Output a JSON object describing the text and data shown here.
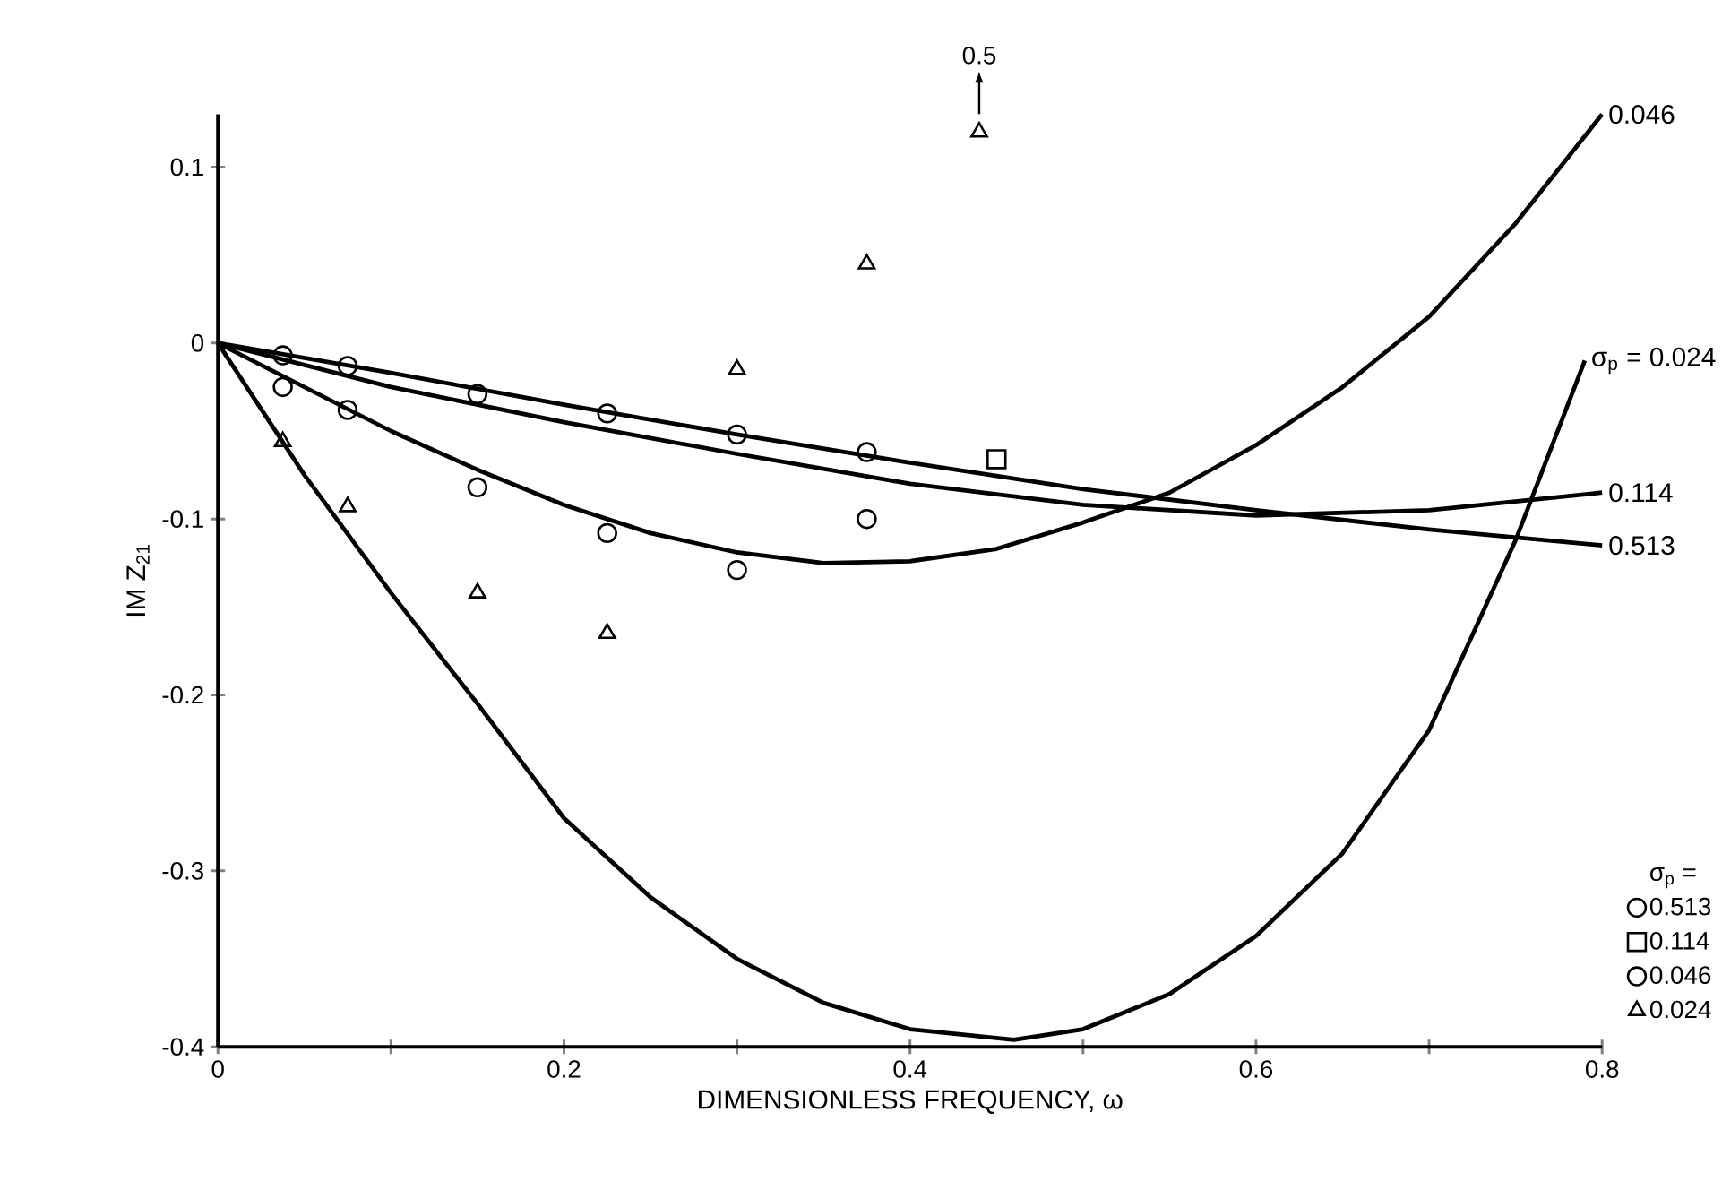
{
  "chart_data": {
    "type": "line",
    "xlabel": "DIMENSIONLESS FREQUENCY, ω",
    "ylabel": "IM Z$_{21}$",
    "legend_title": "σ$_{p}$ =",
    "legend": "right",
    "xlim": [
      0,
      0.8
    ],
    "ylim": [
      -0.4,
      0.13
    ],
    "xticks": [
      {
        "value": 0,
        "label": "0"
      },
      {
        "value": 0.1,
        "label": null
      },
      0.2,
      {
        "value": 0.3,
        "label": null
      },
      0.4,
      {
        "value": 0.5,
        "label": null
      },
      0.6,
      {
        "value": 0.7,
        "label": null
      },
      0.8
    ],
    "yticks": [
      -0.4,
      -0.3,
      -0.2,
      -0.1,
      0,
      0.1
    ],
    "annotations": [
      {
        "text": "0.5",
        "x": 0.44,
        "y": 0.12
      }
    ],
    "series": [
      {
        "name": "0.513",
        "marker": "none",
        "line_style": "solid",
        "color": "#000000",
        "x": [
          0,
          0.1,
          0.2,
          0.3,
          0.4,
          0.5,
          0.6,
          0.7,
          0.8
        ],
        "values": [
          0,
          -0.017,
          -0.035,
          -0.052,
          -0.068,
          -0.083,
          -0.095,
          -0.106,
          -0.115
        ]
      },
      {
        "name": "0.114",
        "marker": "none",
        "line_style": "solid",
        "color": "#000000",
        "x": [
          0,
          0.1,
          0.2,
          0.3,
          0.4,
          0.5,
          0.6,
          0.7,
          0.8
        ],
        "values": [
          0,
          -0.025,
          -0.045,
          -0.063,
          -0.08,
          -0.092,
          -0.098,
          -0.095,
          -0.085
        ]
      },
      {
        "name": "0.046",
        "marker": "none",
        "line_style": "solid",
        "color": "#000000",
        "x": [
          0,
          0.05,
          0.1,
          0.15,
          0.2,
          0.25,
          0.3,
          0.35,
          0.4,
          0.45,
          0.5,
          0.55,
          0.6,
          0.65,
          0.7,
          0.75,
          0.8
        ],
        "values": [
          0,
          -0.025,
          -0.05,
          -0.072,
          -0.092,
          -0.108,
          -0.119,
          -0.125,
          -0.124,
          -0.117,
          -0.102,
          -0.085,
          -0.058,
          -0.025,
          0.015,
          0.068,
          0.13
        ]
      },
      {
        "name": "σ$_{p}$ = 0.024",
        "marker": "none",
        "line_style": "solid",
        "color": "#000000",
        "x": [
          0,
          0.05,
          0.1,
          0.15,
          0.2,
          0.25,
          0.3,
          0.35,
          0.4,
          0.46,
          0.5,
          0.55,
          0.6,
          0.65,
          0.7,
          0.75,
          0.79
        ],
        "values": [
          0,
          -0.075,
          -0.142,
          -0.205,
          -0.27,
          -0.315,
          -0.35,
          -0.375,
          -0.39,
          -0.396,
          -0.39,
          -0.37,
          -0.337,
          -0.29,
          -0.22,
          -0.112,
          -0.01
        ]
      },
      {
        "name": "0.513",
        "type": "scatter",
        "marker": "circle",
        "color": "#000000",
        "x": [
          0.0375,
          0.075,
          0.15,
          0.225,
          0.3,
          0.375
        ],
        "values": [
          -0.007,
          -0.013,
          -0.029,
          -0.04,
          -0.052,
          -0.062
        ]
      },
      {
        "name": "0.114",
        "type": "scatter",
        "marker": "square",
        "color": "#000000",
        "x": [
          0.45
        ],
        "values": [
          -0.066
        ]
      },
      {
        "name": "0.046",
        "type": "scatter",
        "marker": "circle",
        "color": "#000000",
        "x": [
          0.0375,
          0.075,
          0.15,
          0.225,
          0.3,
          0.375
        ],
        "values": [
          -0.025,
          -0.038,
          -0.082,
          -0.108,
          -0.129,
          -0.1
        ]
      },
      {
        "name": "0.024",
        "type": "scatter",
        "marker": "triangle",
        "color": "#000000",
        "x": [
          0.0375,
          0.075,
          0.15,
          0.225,
          0.3,
          0.375,
          0.44
        ],
        "values": [
          -0.056,
          -0.093,
          -0.142,
          -0.165,
          -0.015,
          0.045,
          0.12
        ]
      }
    ]
  }
}
